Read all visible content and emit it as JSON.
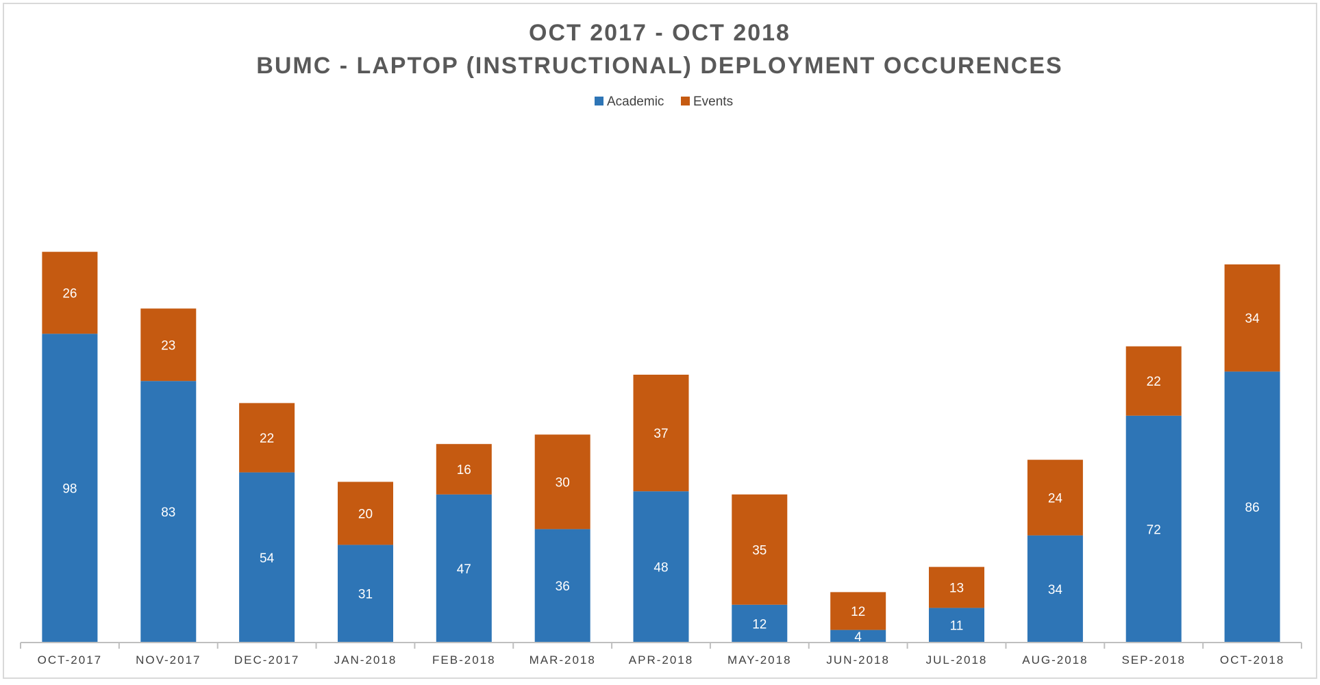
{
  "chart_data": {
    "type": "bar",
    "stacked": true,
    "title": "OCT 2017 - OCT 2018",
    "subtitle": "BUMC - LAPTOP (INSTRUCTIONAL) DEPLOYMENT OCCURENCES",
    "xlabel": "",
    "ylabel": "",
    "ylim": [
      0,
      140
    ],
    "grid": false,
    "legend_position": "top-center",
    "categories": [
      "OCT-2017",
      "NOV-2017",
      "DEC-2017",
      "JAN-2018",
      "FEB-2018",
      "MAR-2018",
      "APR-2018",
      "MAY-2018",
      "JUN-2018",
      "JUL-2018",
      "AUG-2018",
      "SEP-2018",
      "OCT-2018"
    ],
    "series": [
      {
        "name": "Academic",
        "color": "#2e75b6",
        "values": [
          98,
          83,
          54,
          31,
          47,
          36,
          48,
          12,
          4,
          11,
          34,
          72,
          86
        ]
      },
      {
        "name": "Events",
        "color": "#c55a11",
        "values": [
          26,
          23,
          22,
          20,
          16,
          30,
          37,
          35,
          12,
          13,
          24,
          22,
          34
        ]
      }
    ]
  }
}
